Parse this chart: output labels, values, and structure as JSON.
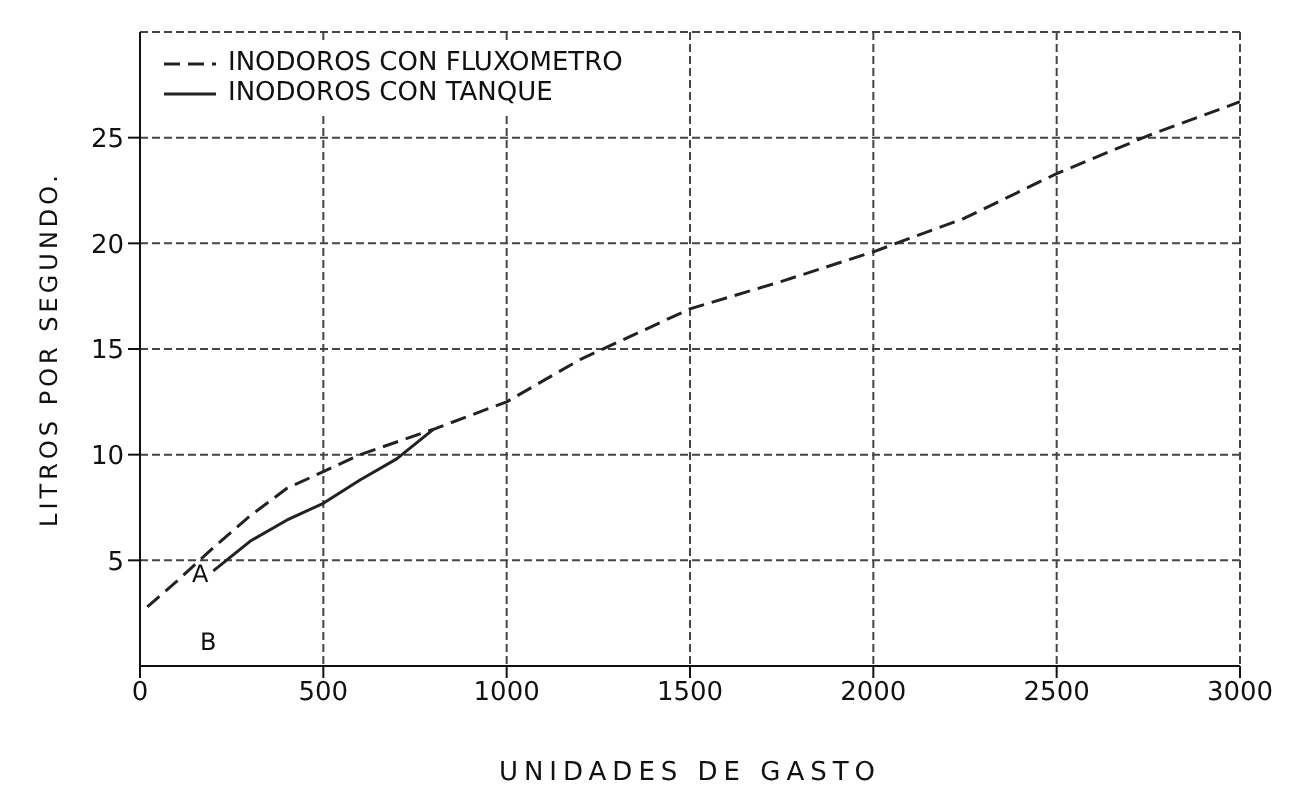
{
  "chart_data": {
    "type": "line",
    "xlabel": "UNIDADES DE GASTO",
    "ylabel": "LITROS POR SEGUNDO.",
    "xlim": [
      0,
      3000
    ],
    "xticks": [
      0,
      500,
      1000,
      1500,
      2000,
      2500,
      3000
    ],
    "ylim": [
      0,
      30
    ],
    "yticks": [
      5,
      10,
      15,
      20,
      25
    ],
    "grid": true,
    "legend": "top left",
    "marker": "none",
    "series": [
      {
        "name": "INODOROS CON FLUXOMETRO",
        "color": "#222222",
        "line_style": "dashed",
        "x": [
          20,
          100,
          200,
          300,
          400,
          500,
          600,
          700,
          800,
          1000,
          1200,
          1500,
          1750,
          2000,
          2250,
          2500,
          2750,
          3000
        ],
        "values": [
          2.8,
          4.0,
          5.6,
          7.1,
          8.4,
          9.2,
          10.0,
          10.6,
          11.2,
          12.5,
          14.5,
          16.9,
          18.2,
          19.6,
          21.2,
          23.3,
          25.1,
          26.7
        ]
      },
      {
        "name": "INODOROS CON TANQUE",
        "color": "#222222",
        "line_style": "solid",
        "x": [
          200,
          300,
          400,
          500,
          600,
          700,
          800
        ],
        "values": [
          4.5,
          5.9,
          6.9,
          7.7,
          8.8,
          9.8,
          11.2
        ]
      }
    ],
    "annotations": [
      "A",
      "B"
    ]
  }
}
